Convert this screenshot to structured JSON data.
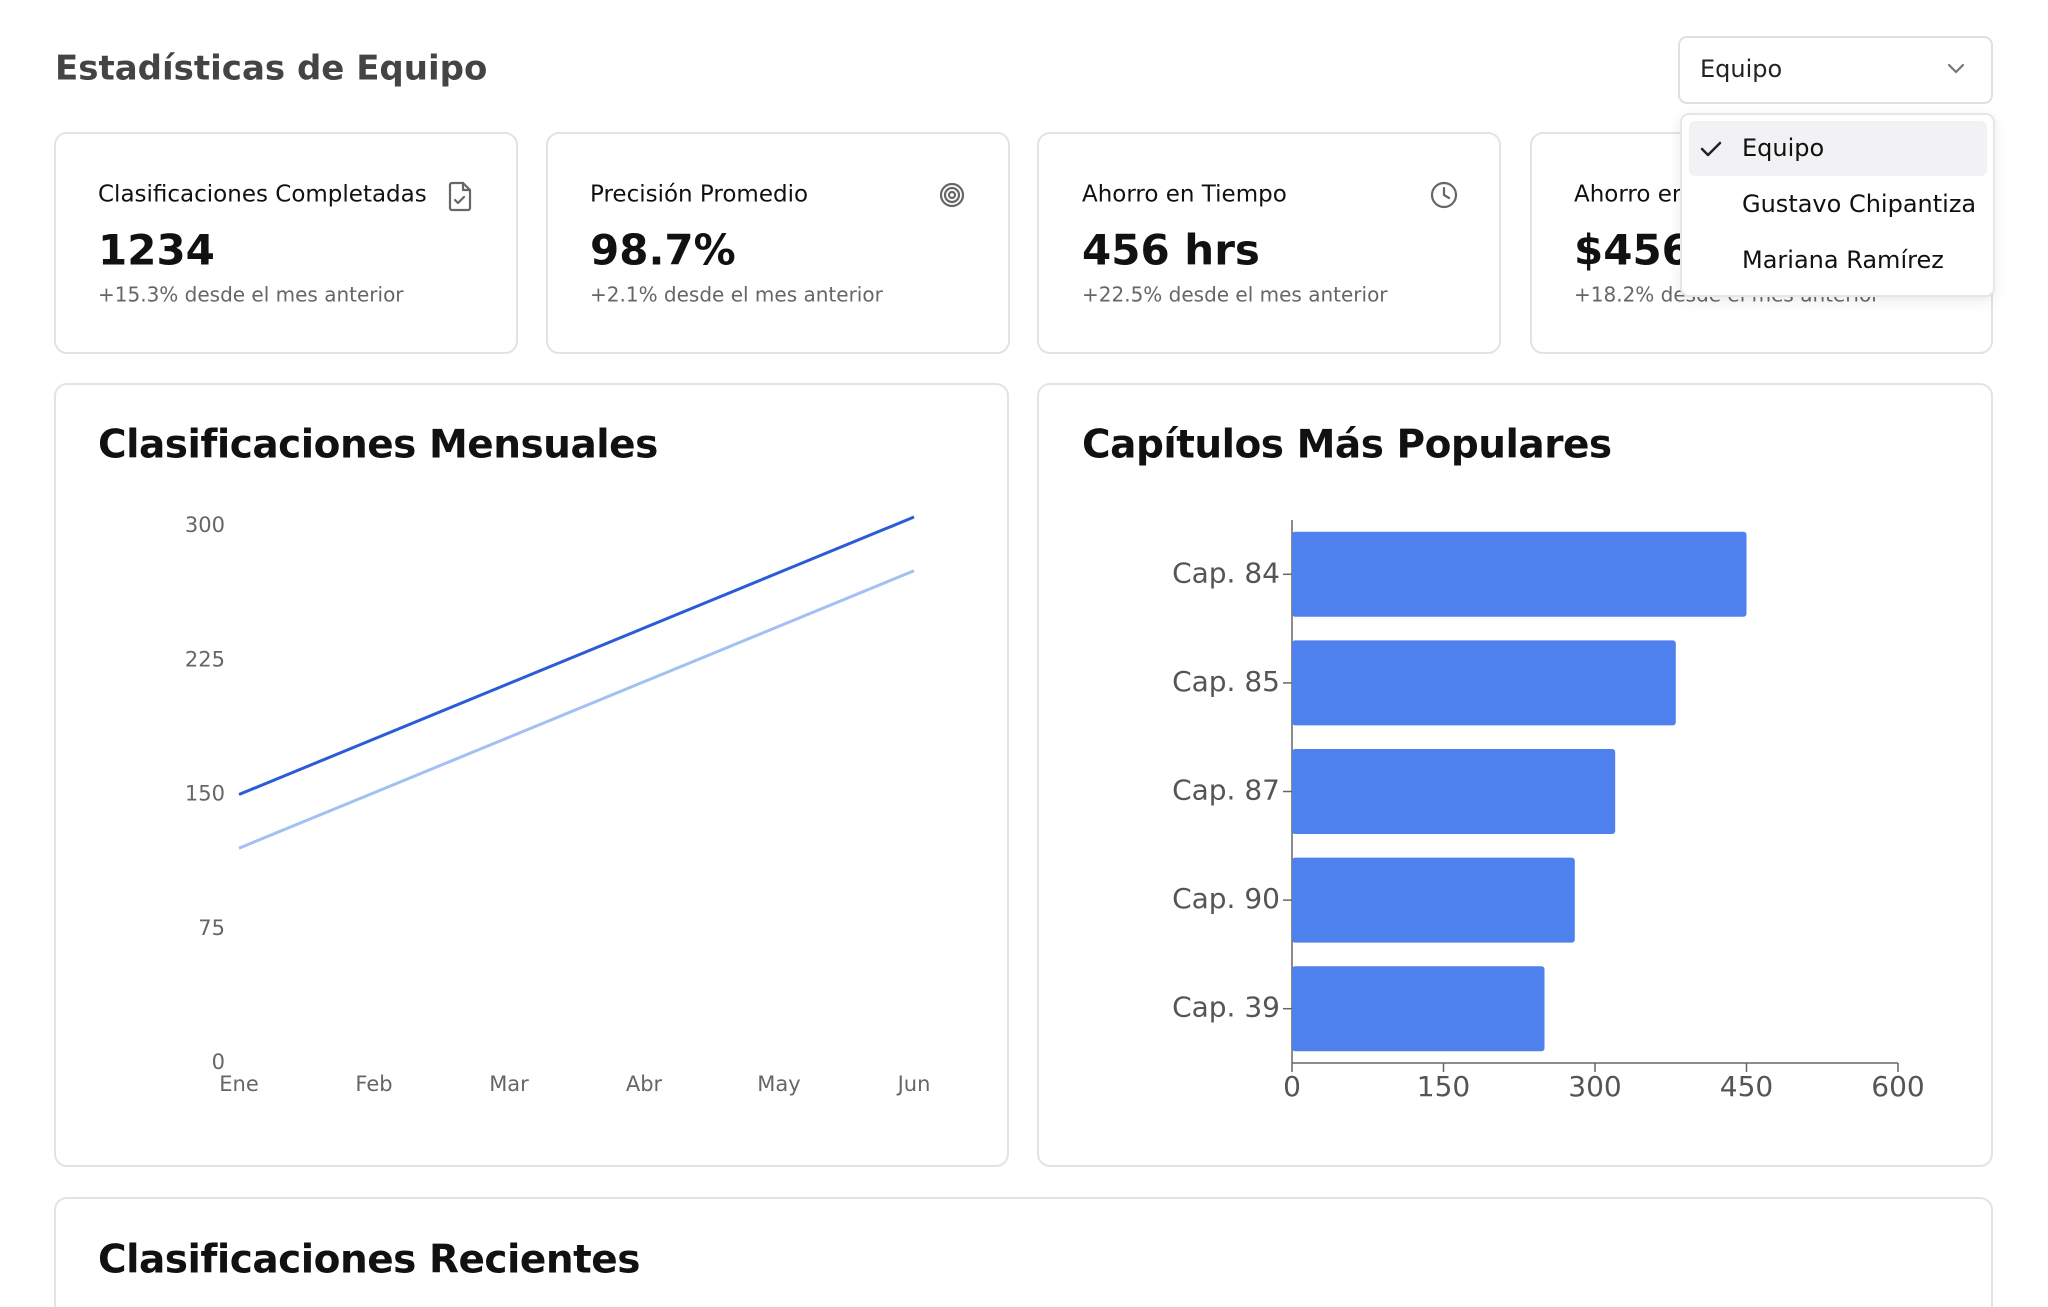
{
  "header": {
    "title": "Estadísticas de Equipo"
  },
  "filter": {
    "selected": "Equipo",
    "options": [
      "Equipo",
      "Gustavo Chipantiza",
      "Mariana Ramírez"
    ]
  },
  "stats": [
    {
      "label": "Clasificaciones Completadas",
      "value": "1234",
      "change": "+15.3% desde el mes anterior"
    },
    {
      "label": "Precisión Promedio",
      "value": "98.7%",
      "change": "+2.1% desde el mes anterior"
    },
    {
      "label": "Ahorro en Tiempo",
      "value": "456 hrs",
      "change": "+22.5% desde el mes anterior"
    },
    {
      "label": "Ahorro en",
      "value": "$456",
      "change": "+18.2% desde el mes anterior"
    }
  ],
  "chart_data": [
    {
      "type": "line",
      "title": "Clasificaciones Mensuales",
      "categories": [
        "Ene",
        "Feb",
        "Mar",
        "Abr",
        "May",
        "Jun"
      ],
      "series": [
        {
          "color": "#2b5bd7",
          "values": [
            150,
            181,
            212,
            243,
            274,
            305
          ]
        },
        {
          "color": "#a3c0f3",
          "values": [
            120,
            151,
            182,
            213,
            244,
            275
          ]
        }
      ],
      "ylim": [
        0,
        300
      ],
      "yticks": [
        0,
        75,
        150,
        225,
        300
      ]
    },
    {
      "type": "bar",
      "orientation": "horizontal",
      "title": "Capítulos Más Populares",
      "categories": [
        "Cap. 84",
        "Cap. 85",
        "Cap. 87",
        "Cap. 90",
        "Cap. 39"
      ],
      "values": [
        450,
        380,
        320,
        280,
        250
      ],
      "color": "#4f81ee",
      "xlim": [
        0,
        600
      ],
      "xticks": [
        0,
        150,
        300,
        450,
        600
      ]
    }
  ],
  "recent": {
    "title": "Clasificaciones Recientes"
  }
}
